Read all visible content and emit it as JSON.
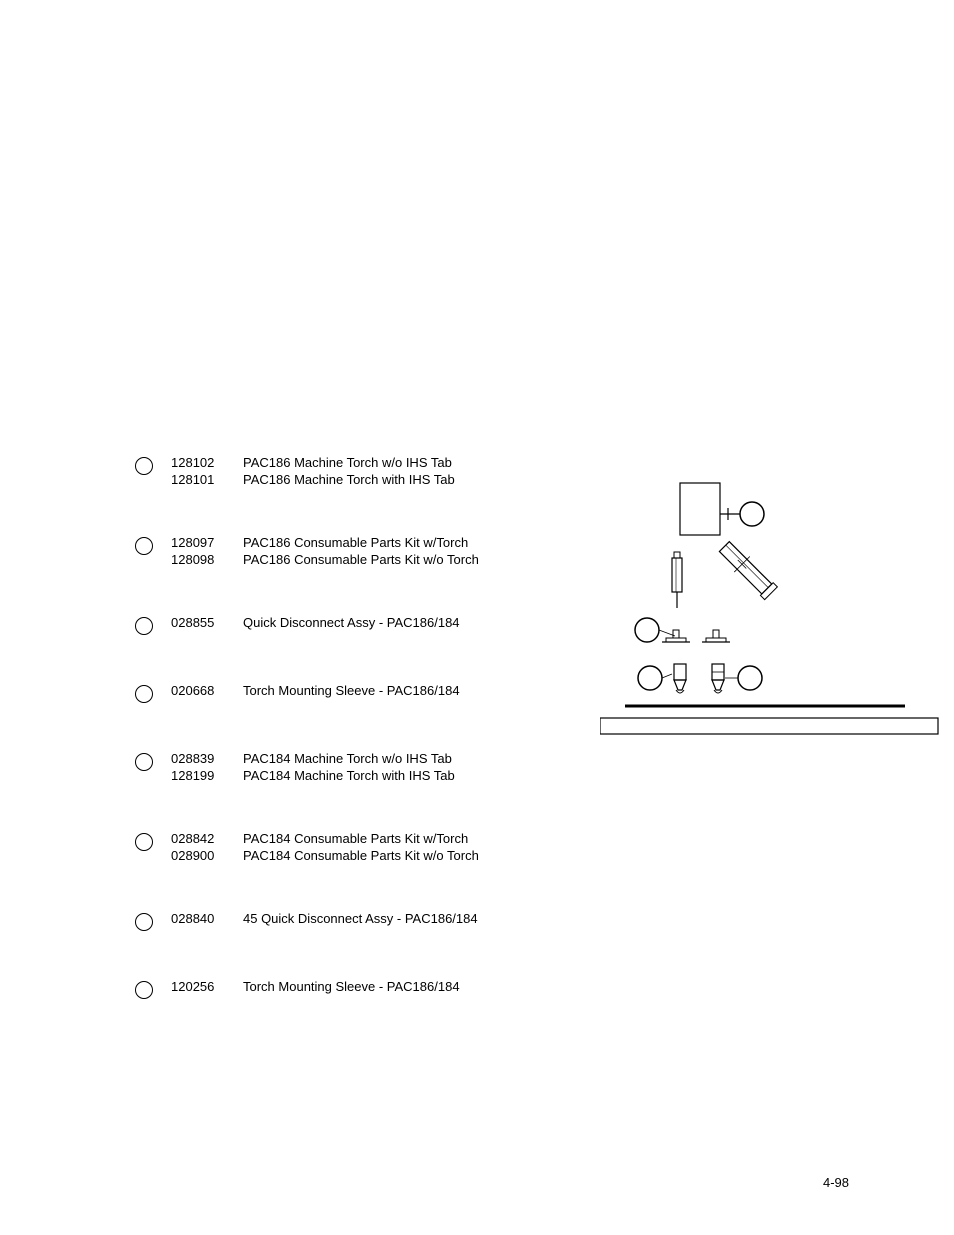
{
  "items": [
    {
      "lines": [
        {
          "num": "128102",
          "desc": "PAC186 Machine Torch w/o IHS Tab"
        },
        {
          "num": "128101",
          "desc": "PAC186 Machine Torch with IHS Tab"
        }
      ]
    },
    {
      "lines": [
        {
          "num": "128097",
          "desc": "PAC186 Consumable Parts Kit w/Torch"
        },
        {
          "num": "128098",
          "desc": "PAC186 Consumable Parts Kit w/o Torch"
        }
      ]
    },
    {
      "lines": [
        {
          "num": "028855",
          "desc": "Quick Disconnect Assy - PAC186/184"
        }
      ]
    },
    {
      "lines": [
        {
          "num": "020668",
          "desc": "Torch Mounting Sleeve - PAC186/184"
        }
      ]
    },
    {
      "lines": [
        {
          "num": "028839",
          "desc": "PAC184 Machine Torch w/o IHS Tab"
        },
        {
          "num": "128199",
          "desc": "PAC184 Machine Torch with IHS Tab"
        }
      ]
    },
    {
      "lines": [
        {
          "num": "028842",
          "desc": "PAC184 Consumable Parts Kit w/Torch"
        },
        {
          "num": "028900",
          "desc": "PAC184 Consumable Parts Kit w/o Torch"
        }
      ]
    },
    {
      "lines": [
        {
          "num": "028840",
          "desc": "45  Quick Disconnect Assy - PAC186/184"
        }
      ]
    },
    {
      "lines": [
        {
          "num": "120256",
          "desc": "Torch Mounting Sleeve - PAC186/184"
        }
      ]
    }
  ],
  "page_number": "4-98",
  "colors": {
    "text": "#000000",
    "background": "#ffffff",
    "stroke": "#000000"
  },
  "typography": {
    "font_family": "Arial",
    "font_size_pt": 10
  }
}
